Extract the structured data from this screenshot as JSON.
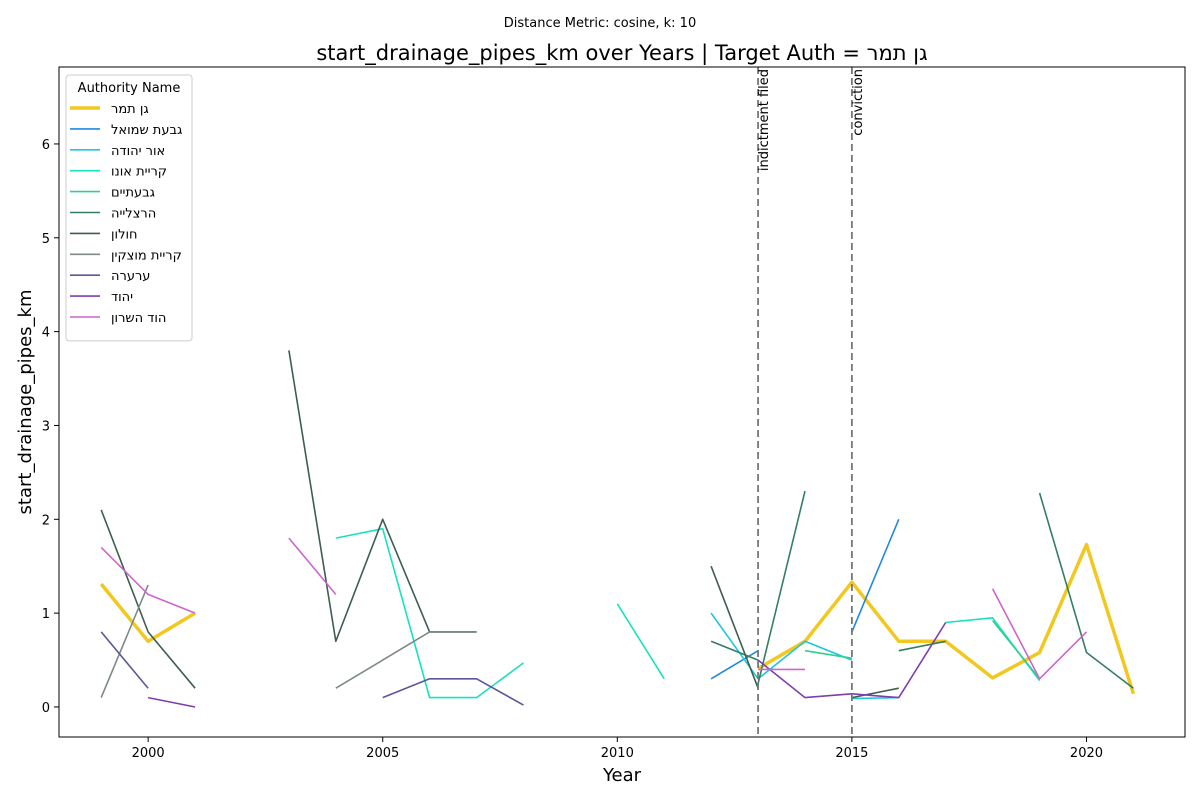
{
  "chart_data": {
    "type": "line",
    "suptitle": "Distance Metric: cosine, k: 10",
    "title": "start_drainage_pipes_km over Years | Target Auth = גן תמר",
    "xlabel": "Year",
    "ylabel": "start_drainage_pipes_km",
    "xlim": [
      1998.1,
      2022.1
    ],
    "ylim": [
      -0.32,
      6.82
    ],
    "xticks": [
      2000,
      2005,
      2010,
      2015,
      2020
    ],
    "yticks": [
      0,
      1,
      2,
      3,
      4,
      5,
      6
    ],
    "grid": false,
    "legend": {
      "title": "Authority Name",
      "placement": "top-left"
    },
    "events": [
      {
        "x": 2013,
        "label": "indictment filed"
      },
      {
        "x": 2015,
        "label": "conviction"
      }
    ],
    "series": [
      {
        "name": "גן תמר",
        "color": "#f2c81f",
        "target": true,
        "points": [
          [
            1999,
            1.31
          ],
          [
            2000,
            0.7
          ],
          [
            2001,
            1.0
          ],
          null,
          [
            2013,
            0.41
          ],
          [
            2014,
            0.7
          ],
          [
            2015,
            1.33
          ],
          [
            2016,
            0.7
          ],
          [
            2017,
            0.7
          ],
          [
            2018,
            0.31
          ],
          [
            2019,
            0.58
          ],
          [
            2020,
            1.73
          ],
          [
            2021,
            0.14
          ]
        ]
      },
      {
        "name": "גבעת שמואל",
        "color": "#2188e0",
        "points": [
          [
            2012,
            0.3
          ],
          [
            2013,
            0.6
          ],
          null,
          [
            2015,
            0.8
          ],
          [
            2016,
            2.0
          ]
        ]
      },
      {
        "name": "אור יהודה",
        "color": "#1fc6dd",
        "points": [
          [
            2012,
            1.0
          ],
          [
            2013,
            0.3
          ],
          [
            2014,
            0.7
          ],
          [
            2015,
            0.5
          ],
          null,
          [
            2015,
            0.09
          ],
          [
            2016,
            0.1
          ]
        ]
      },
      {
        "name": "קריית אונו",
        "color": "#18e1bd",
        "points": [
          [
            2004,
            1.8
          ],
          [
            2005,
            1.9
          ],
          [
            2006,
            0.1
          ],
          [
            2007,
            0.1
          ],
          [
            2008,
            0.47
          ],
          null,
          [
            2010,
            1.1
          ],
          [
            2011,
            0.3
          ],
          null,
          [
            2017,
            0.9
          ],
          [
            2018,
            0.95
          ],
          [
            2019,
            0.28
          ]
        ]
      },
      {
        "name": "גבעתיים",
        "color": "#2fd08c",
        "points": [
          [
            2014,
            0.6
          ],
          [
            2015,
            0.52
          ],
          null,
          [
            2018,
            0.92
          ],
          [
            2019,
            0.3
          ]
        ]
      },
      {
        "name": "הרצלייה",
        "color": "#347f62",
        "points": [
          [
            2012,
            0.7
          ],
          [
            2013,
            0.5
          ],
          null,
          [
            2013,
            0.25
          ],
          [
            2014,
            2.3
          ],
          null,
          [
            2016,
            0.6
          ],
          [
            2017,
            0.7
          ],
          null,
          [
            2019,
            2.28
          ],
          [
            2020,
            0.58
          ],
          [
            2021,
            0.2
          ]
        ]
      },
      {
        "name": "חולון",
        "color": "#3f5e50",
        "points": [
          [
            1999,
            2.1
          ],
          [
            2000,
            0.8
          ],
          [
            2001,
            0.2
          ],
          null,
          [
            2003,
            3.8
          ],
          [
            2004,
            0.7
          ],
          [
            2005,
            2.0
          ],
          [
            2006,
            0.8
          ],
          [
            2007,
            0.8
          ],
          null,
          [
            2012,
            1.5
          ],
          [
            2013,
            0.2
          ],
          null,
          [
            2015,
            0.1
          ],
          [
            2016,
            0.2
          ]
        ]
      },
      {
        "name": "קריית מוצקין",
        "color": "#7d8a85",
        "points": [
          [
            1999,
            0.1
          ],
          [
            2000,
            1.3
          ],
          null,
          [
            2004,
            0.2
          ],
          [
            2005,
            0.5
          ],
          [
            2006,
            0.8
          ],
          [
            2007,
            0.8
          ]
        ]
      },
      {
        "name": "ערערה",
        "color": "#5b5799",
        "points": [
          [
            1999,
            0.8
          ],
          [
            2000,
            0.2
          ],
          null,
          [
            2005,
            0.1
          ],
          [
            2006,
            0.3
          ],
          [
            2007,
            0.3
          ],
          [
            2008,
            0.02
          ]
        ]
      },
      {
        "name": "יהוד",
        "color": "#7e3fae",
        "points": [
          [
            2000,
            0.1
          ],
          [
            2001,
            0.0
          ],
          null,
          [
            2013,
            0.5
          ],
          [
            2014,
            0.1
          ],
          [
            2015,
            0.14
          ],
          [
            2016,
            0.1
          ],
          [
            2017,
            0.9
          ]
        ]
      },
      {
        "name": "הוד השרון",
        "color": "#cc66cc",
        "points": [
          [
            1999,
            1.7
          ],
          [
            2000,
            1.2
          ],
          [
            2001,
            1.0
          ],
          null,
          [
            2003,
            1.8
          ],
          [
            2004,
            1.2
          ],
          null,
          [
            2013,
            0.4
          ],
          [
            2014,
            0.4
          ],
          null,
          [
            2018,
            1.26
          ],
          [
            2019,
            0.3
          ],
          [
            2020,
            0.8
          ]
        ]
      }
    ]
  }
}
